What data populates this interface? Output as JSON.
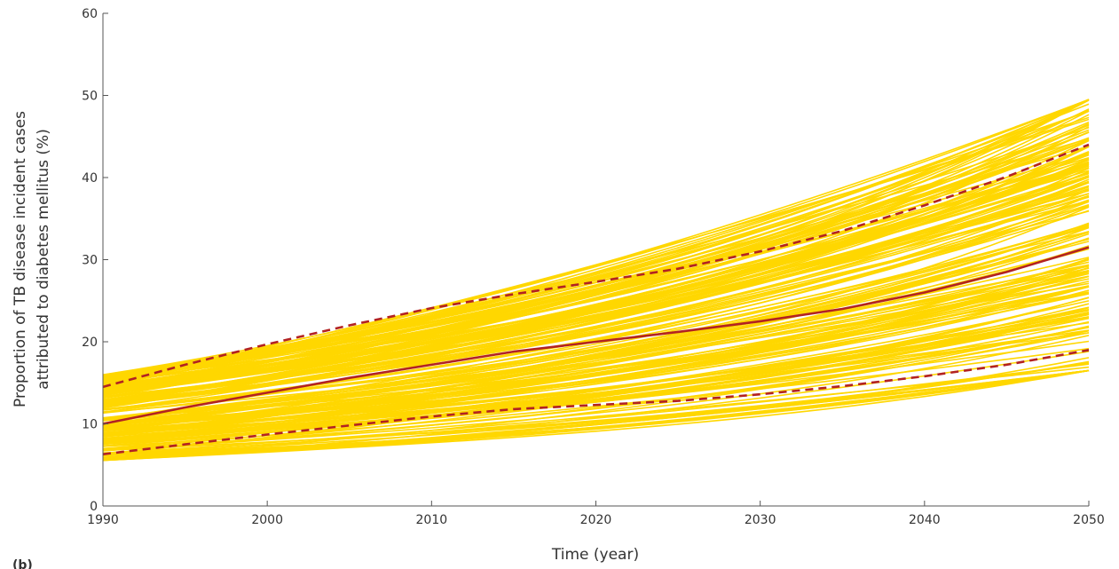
{
  "chart_data": {
    "type": "line",
    "title": "",
    "xlabel": "Time (year)",
    "ylabel_line1": "Proportion of TB disease incident cases",
    "ylabel_line2": "attributed to diabetes mellitus (%)",
    "xlim": [
      1990,
      2050
    ],
    "ylim": [
      0,
      60
    ],
    "x_ticks": [
      1990,
      2000,
      2010,
      2020,
      2030,
      2040,
      2050
    ],
    "y_ticks": [
      0,
      10,
      20,
      30,
      40,
      50,
      60
    ],
    "grid": false,
    "legend": "none",
    "panel_label": "(b)",
    "colors": {
      "simulations": "#FFD700",
      "median": "#B22222",
      "bounds": "#B22222"
    },
    "ensemble": {
      "description_count": 200,
      "start_range": [
        5.5,
        16.0
      ],
      "end_range": [
        16.5,
        49.5
      ]
    },
    "series": [
      {
        "role": "median",
        "style": "solid",
        "x": [
          1990,
          1995,
          2000,
          2005,
          2010,
          2015,
          2020,
          2025,
          2030,
          2035,
          2040,
          2045,
          2050
        ],
        "y": [
          10.0,
          12.0,
          13.8,
          15.6,
          17.2,
          18.8,
          20.0,
          21.2,
          22.5,
          24.0,
          26.0,
          28.5,
          31.5
        ]
      },
      {
        "role": "upper-bound",
        "style": "dashed",
        "x": [
          1990,
          1995,
          2000,
          2005,
          2010,
          2015,
          2020,
          2025,
          2030,
          2035,
          2040,
          2045,
          2050
        ],
        "y": [
          14.5,
          17.2,
          19.7,
          22.0,
          24.1,
          25.8,
          27.3,
          28.9,
          31.0,
          33.5,
          36.6,
          40.1,
          44.0
        ]
      },
      {
        "role": "lower-bound",
        "style": "dashed",
        "x": [
          1990,
          1995,
          2000,
          2005,
          2010,
          2015,
          2020,
          2025,
          2030,
          2035,
          2040,
          2045,
          2050
        ],
        "y": [
          6.3,
          7.5,
          8.7,
          9.8,
          10.9,
          11.8,
          12.3,
          12.8,
          13.6,
          14.6,
          15.8,
          17.2,
          19.0
        ]
      }
    ]
  }
}
